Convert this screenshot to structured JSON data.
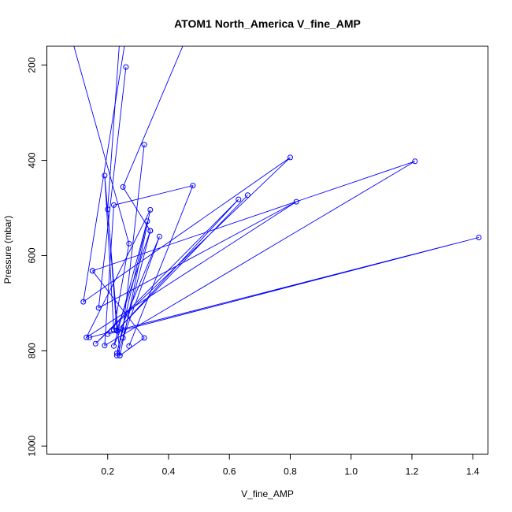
{
  "chart_data": {
    "type": "line",
    "title": "ATOM1 North_America V_fine_AMP",
    "xlabel": "V_fine_AMP",
    "ylabel": "Pressure (mbar)",
    "xlim": [
      0.0,
      1.45
    ],
    "ylim": [
      1017,
      160
    ],
    "y_reversed": true,
    "x_ticks": [
      {
        "value": 0.2,
        "label": "0.2"
      },
      {
        "value": 0.4,
        "label": "0.4"
      },
      {
        "value": 0.6,
        "label": "0.6"
      },
      {
        "value": 0.8,
        "label": "0.8"
      },
      {
        "value": 1.0,
        "label": "1.0"
      },
      {
        "value": 1.2,
        "label": "1.2"
      },
      {
        "value": 1.4,
        "label": "1.4"
      }
    ],
    "y_ticks": [
      {
        "value": 200,
        "label": "200"
      },
      {
        "value": 400,
        "label": "400"
      },
      {
        "value": 600,
        "label": "600"
      },
      {
        "value": 800,
        "label": "800"
      },
      {
        "value": 1000,
        "label": "1000"
      }
    ],
    "grid": false,
    "color": "#0000ff",
    "marker": "open-circle",
    "series": [
      {
        "x": [
          0.08,
          0.27,
          0.22,
          0.19,
          0.24,
          0.32,
          0.15
        ],
        "y": [
          140,
          575,
          757,
          432,
          810,
          773,
          632
        ]
      },
      {
        "x": [
          0.32,
          0.25,
          0.23,
          0.33,
          0.22,
          0.37,
          0.23
        ],
        "y": [
          367,
          756,
          805,
          528,
          790,
          560,
          810
        ]
      },
      {
        "x": [
          0.26,
          0.12,
          0.8,
          0.16,
          0.63,
          0.23,
          0.66
        ],
        "y": [
          140,
          697,
          394,
          785,
          482,
          758,
          473
        ]
      },
      {
        "x": [
          0.26,
          0.17,
          0.82,
          0.13,
          0.34,
          0.24
        ],
        "y": [
          204,
          710,
          487,
          772,
          504,
          810
        ]
      },
      {
        "x": [
          0.24,
          0.2,
          0.23,
          0.34
        ],
        "y": [
          140,
          503,
          757,
          548
        ]
      },
      {
        "x": [
          0.46,
          0.25,
          0.34,
          0.25
        ],
        "y": [
          140,
          456,
          548,
          773
        ]
      },
      {
        "x": [
          0.27,
          0.48,
          0.22,
          0.19,
          1.21,
          0.15
        ],
        "y": [
          790,
          453,
          494,
          789,
          402,
          632
        ]
      },
      {
        "x": [
          0.2,
          1.42,
          0.14
        ],
        "y": [
          765,
          562,
          772
        ]
      }
    ]
  }
}
